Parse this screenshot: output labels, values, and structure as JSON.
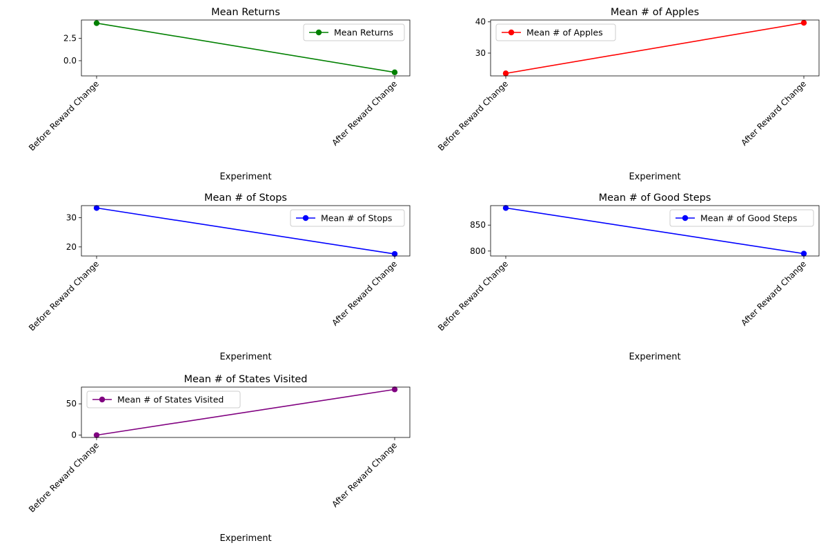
{
  "chart_data": [
    {
      "type": "line",
      "title": "Mean Returns",
      "xlabel": "Experiment",
      "ylabel": "",
      "categories": [
        "Before Reward Change",
        "After Reward Change"
      ],
      "series": [
        {
          "name": "Mean Returns",
          "values": [
            4.2,
            -1.3
          ],
          "color": "#008000"
        }
      ],
      "ylim": [
        -1.7,
        4.55
      ],
      "yticks": [
        0.0,
        2.5
      ],
      "yticklabels": [
        "0.0",
        "2.5"
      ],
      "legend": "upper right"
    },
    {
      "type": "line",
      "title": "Mean # of Apples",
      "xlabel": "Experiment",
      "ylabel": "",
      "categories": [
        "Before Reward Change",
        "After Reward Change"
      ],
      "series": [
        {
          "name": "Mean # of Apples",
          "values": [
            23.5,
            39.7
          ],
          "color": "#ff0000"
        }
      ],
      "ylim": [
        22.7,
        40.6
      ],
      "yticks": [
        30,
        40
      ],
      "yticklabels": [
        "30",
        "40"
      ],
      "legend": "upper left"
    },
    {
      "type": "line",
      "title": "Mean # of Stops",
      "xlabel": "Experiment",
      "ylabel": "",
      "categories": [
        "Before Reward Change",
        "After Reward Change"
      ],
      "series": [
        {
          "name": "Mean # of Stops",
          "values": [
            33.3,
            17.6
          ],
          "color": "#0000ff"
        }
      ],
      "ylim": [
        16.9,
        34.1
      ],
      "yticks": [
        20,
        30
      ],
      "yticklabels": [
        "20",
        "30"
      ],
      "legend": "upper right"
    },
    {
      "type": "line",
      "title": "Mean # of Good Steps",
      "xlabel": "Experiment",
      "ylabel": "",
      "categories": [
        "Before Reward Change",
        "After Reward Change"
      ],
      "series": [
        {
          "name": "Mean # of Good Steps",
          "values": [
            883,
            795
          ],
          "color": "#0000ff"
        }
      ],
      "ylim": [
        790.5,
        887.5
      ],
      "yticks": [
        800,
        850
      ],
      "yticklabels": [
        "800",
        "850"
      ],
      "legend": "upper right"
    },
    {
      "type": "line",
      "title": "Mean # of States Visited",
      "xlabel": "Experiment",
      "ylabel": "",
      "categories": [
        "Before Reward Change",
        "After Reward Change"
      ],
      "series": [
        {
          "name": "Mean # of States Visited",
          "values": [
            0,
            73
          ],
          "color": "#800080"
        }
      ],
      "ylim": [
        -3.7,
        76.7
      ],
      "yticks": [
        0,
        50
      ],
      "yticklabels": [
        "0",
        "50"
      ],
      "legend": "upper left"
    }
  ]
}
